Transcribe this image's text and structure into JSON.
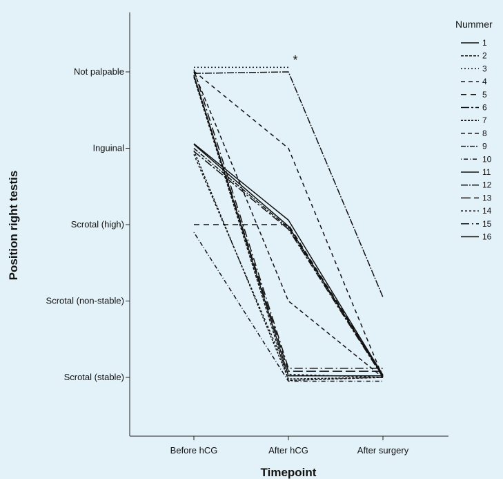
{
  "chart_data": {
    "type": "line",
    "xlabel": "Timepoint",
    "ylabel": "Position right testis",
    "categories": [
      "Before hCG",
      "After hCG",
      "After surgery"
    ],
    "y_levels": [
      "Not palpable",
      "Inguinal",
      "Scrotal (high)",
      "Scrotal (non-stable)",
      "Scrotal (stable)"
    ],
    "y_values": [
      4,
      3,
      2,
      1,
      0
    ],
    "ylim": [
      -0.7,
      4.8
    ],
    "grid": false,
    "legend": {
      "title": "Nummer",
      "position": "right"
    },
    "annotation": "*",
    "series": [
      {
        "name": "1",
        "dash": "solid",
        "values": [
          3.05,
          1.98,
          0.02
        ]
      },
      {
        "name": "2",
        "dash": "4,2",
        "values": [
          3.93,
          -0.04,
          0.0
        ]
      },
      {
        "name": "3",
        "dash": "2,3",
        "values": [
          4.06,
          4.06,
          null
        ]
      },
      {
        "name": "4",
        "dash": "6,5",
        "values": [
          4.01,
          3.0,
          0.0
        ]
      },
      {
        "name": "5",
        "dash": "8,6",
        "values": [
          2.0,
          2.0,
          0.03
        ]
      },
      {
        "name": "6",
        "dash": "12,3,3,3",
        "values": [
          2.96,
          1.94,
          0.0
        ]
      },
      {
        "name": "7",
        "dash": "3,2",
        "values": [
          2.97,
          -0.02,
          0.0
        ]
      },
      {
        "name": "8",
        "dash": "6,4",
        "values": [
          4.0,
          1.0,
          0.0
        ]
      },
      {
        "name": "9",
        "dash": "7,2,2,2",
        "values": [
          3.0,
          1.96,
          0.01
        ]
      },
      {
        "name": "10",
        "dash": "1,3,6,3",
        "values": [
          1.9,
          -0.05,
          -0.05
        ]
      },
      {
        "name": "11",
        "dash": "solid",
        "values": [
          3.96,
          0.02,
          0.02
        ]
      },
      {
        "name": "12",
        "dash": "10,2,2,2",
        "values": [
          3.98,
          4.0,
          1.05
        ]
      },
      {
        "name": "13",
        "dash": "14,5",
        "values": [
          3.95,
          0.08,
          0.08
        ]
      },
      {
        "name": "14",
        "dash": "3,3",
        "values": [
          2.92,
          0.04,
          0.0
        ]
      },
      {
        "name": "15",
        "dash": "12,4,2,4",
        "values": [
          4.03,
          0.12,
          0.12
        ]
      },
      {
        "name": "16",
        "dash": "solid",
        "values": [
          3.06,
          2.06,
          0.03
        ]
      }
    ]
  }
}
